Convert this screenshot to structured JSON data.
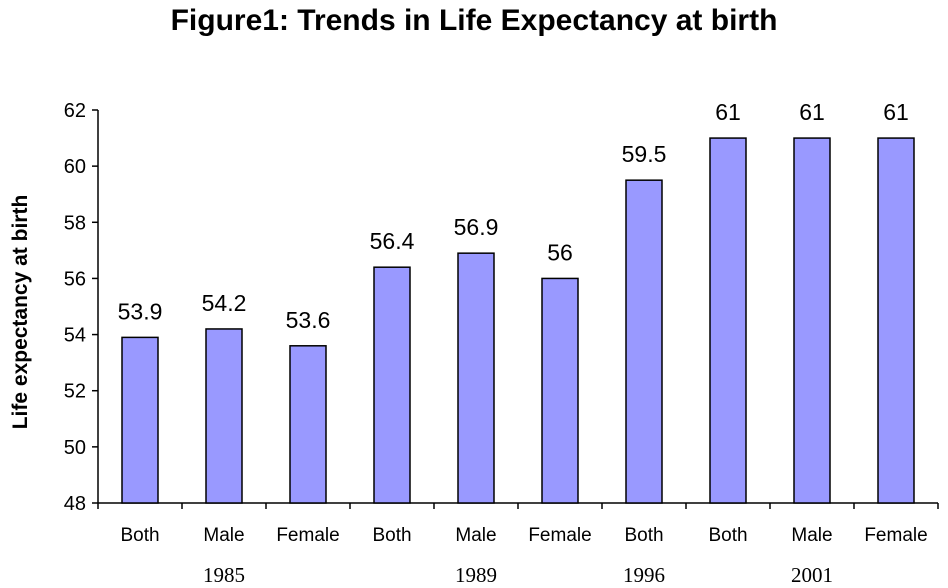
{
  "chart_data": {
    "type": "bar",
    "title": "Figure1: Trends in Life Expectancy at birth",
    "ylabel": "Life expectancy at birth",
    "xlabel": "",
    "ylim": [
      48,
      62
    ],
    "yticks": [
      "48",
      "50",
      "52",
      "54",
      "56",
      "58",
      "60",
      "62"
    ],
    "categories": [
      "Both",
      "Male",
      "Female",
      "Both",
      "Male",
      "Female",
      "Both",
      "Both",
      "Male",
      "Female"
    ],
    "groups": [
      {
        "label": "1985",
        "start": 0,
        "end": 2
      },
      {
        "label": "1989",
        "start": 3,
        "end": 5
      },
      {
        "label": "1996",
        "start": 6,
        "end": 6
      },
      {
        "label": "2001",
        "start": 7,
        "end": 9
      }
    ],
    "values": [
      53.9,
      54.2,
      53.6,
      56.4,
      56.9,
      56,
      59.5,
      61,
      61,
      61
    ],
    "data_labels": [
      "53.9",
      "54.2",
      "53.6",
      "56.4",
      "56.9",
      "56",
      "59.5",
      "61",
      "61",
      "61"
    ],
    "bar_color": "#9999ff",
    "grid": false,
    "legend": "none"
  }
}
